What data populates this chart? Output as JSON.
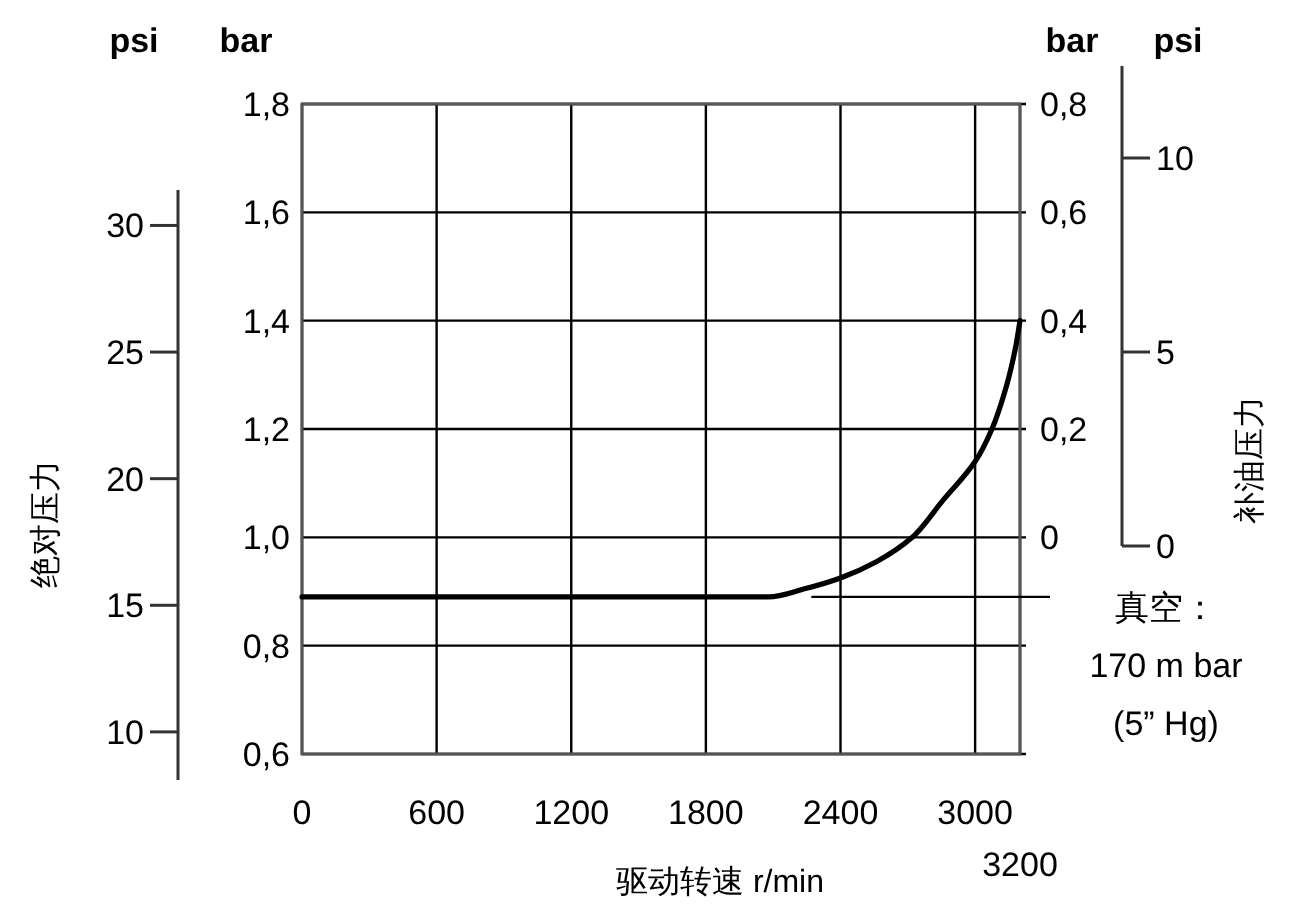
{
  "chart_data": {
    "type": "line",
    "xlabel": "驱动转速 r/min",
    "ylabel": "绝对压力",
    "y2label": "补油压力",
    "annotations": [
      "psi",
      "bar",
      "bar",
      "psi",
      "0",
      "5",
      "10",
      "3200",
      {
        "text": "真空：\n170 m bar\n(5” Hg)",
        "x": 2270,
        "y": 0.89
      }
    ],
    "x": [
      0,
      2080,
      2240,
      2400,
      2560,
      2720,
      2860,
      3000,
      3075,
      3140,
      3180,
      3200
    ],
    "series": [
      {
        "color": "#000000",
        "values": [
          0.89,
          0.89,
          0.905,
          0.925,
          0.955,
          1.0,
          1.07,
          1.14,
          1.2,
          1.28,
          1.35,
          1.4
        ]
      }
    ],
    "xlim": [
      0,
      3200
    ],
    "xticks": [
      0,
      600,
      1200,
      1800,
      2400,
      3000,
      {
        "value": 3200,
        "label": null
      }
    ],
    "ylim": [
      0.6,
      1.8
    ],
    "yticks": [
      {
        "value": 0.6,
        "label": "0,6"
      },
      {
        "value": 0.8,
        "label": "0,8"
      },
      {
        "value": 1.0,
        "label": "1,0"
      },
      {
        "value": 1.2,
        "label": "1,2"
      },
      {
        "value": 1.4,
        "label": "1,4"
      },
      {
        "value": 1.6,
        "label": "1,6"
      },
      {
        "value": 1.8,
        "label": "1,8"
      }
    ],
    "y2lim": [
      -0.4,
      0.8
    ],
    "y2ticks": [
      0,
      {
        "value": 0.2,
        "label": "0,2"
      },
      {
        "value": 0.4,
        "label": "0,4"
      },
      {
        "value": 0.6,
        "label": "0,6"
      },
      {
        "value": 0.8,
        "label": "0,8"
      }
    ],
    "y3lim": [
      8.1,
      31.4
    ],
    "y3ticks": [
      10,
      15,
      20,
      25,
      30
    ],
    "grid": true
  }
}
